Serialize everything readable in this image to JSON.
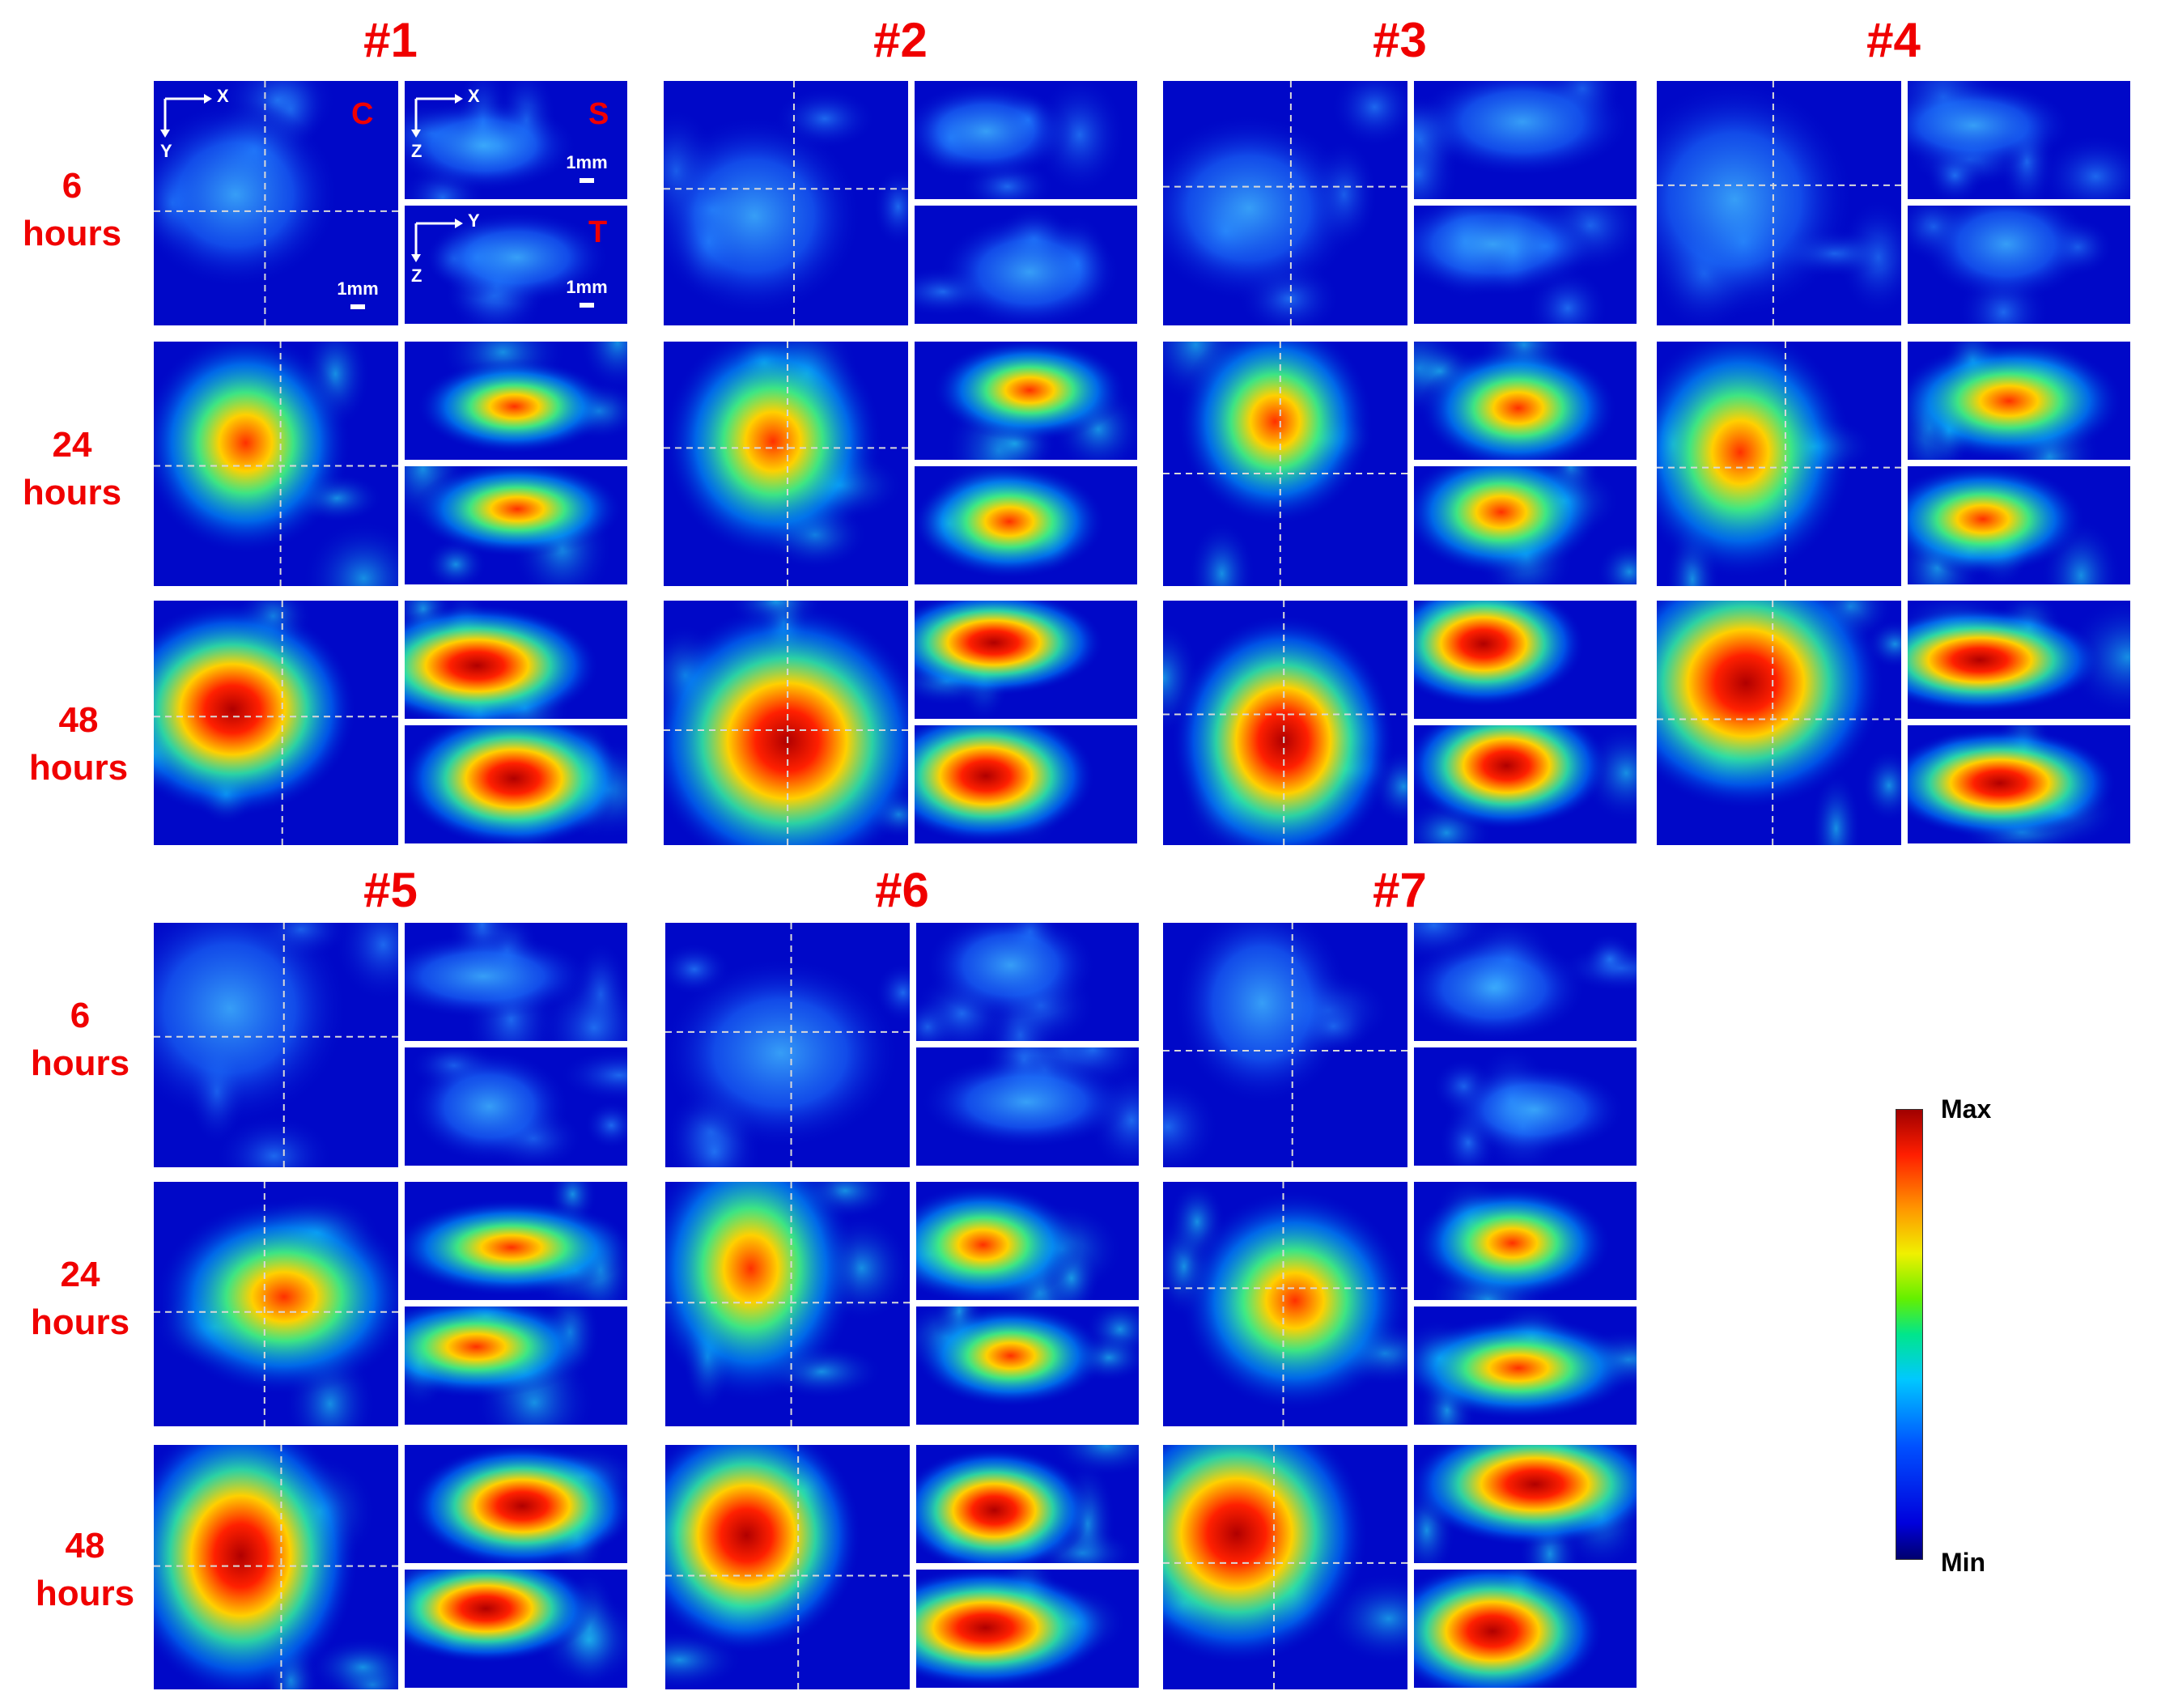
{
  "panels": [
    {
      "id": "#1"
    },
    {
      "id": "#2"
    },
    {
      "id": "#3"
    },
    {
      "id": "#4"
    },
    {
      "id": "#5"
    },
    {
      "id": "#6"
    },
    {
      "id": "#7"
    }
  ],
  "row_labels": [
    {
      "num": "6",
      "unit": "hours"
    },
    {
      "num": "24",
      "unit": "hours"
    },
    {
      "num": "48",
      "unit": "hours"
    }
  ],
  "view_labels": {
    "coronal": "C",
    "sagittal": "S",
    "transverse": "T"
  },
  "axis_labels": {
    "x": "X",
    "y": "Y",
    "z": "Z"
  },
  "scale_bar": "1mm",
  "colorbar": {
    "max": "Max",
    "min": "Min"
  },
  "colors": {
    "title_red": "#f00000",
    "background_blue": "#0008c8"
  },
  "intensity_levels": {
    "6 hours": "low",
    "24 hours": "medium",
    "48 hours": "high"
  }
}
